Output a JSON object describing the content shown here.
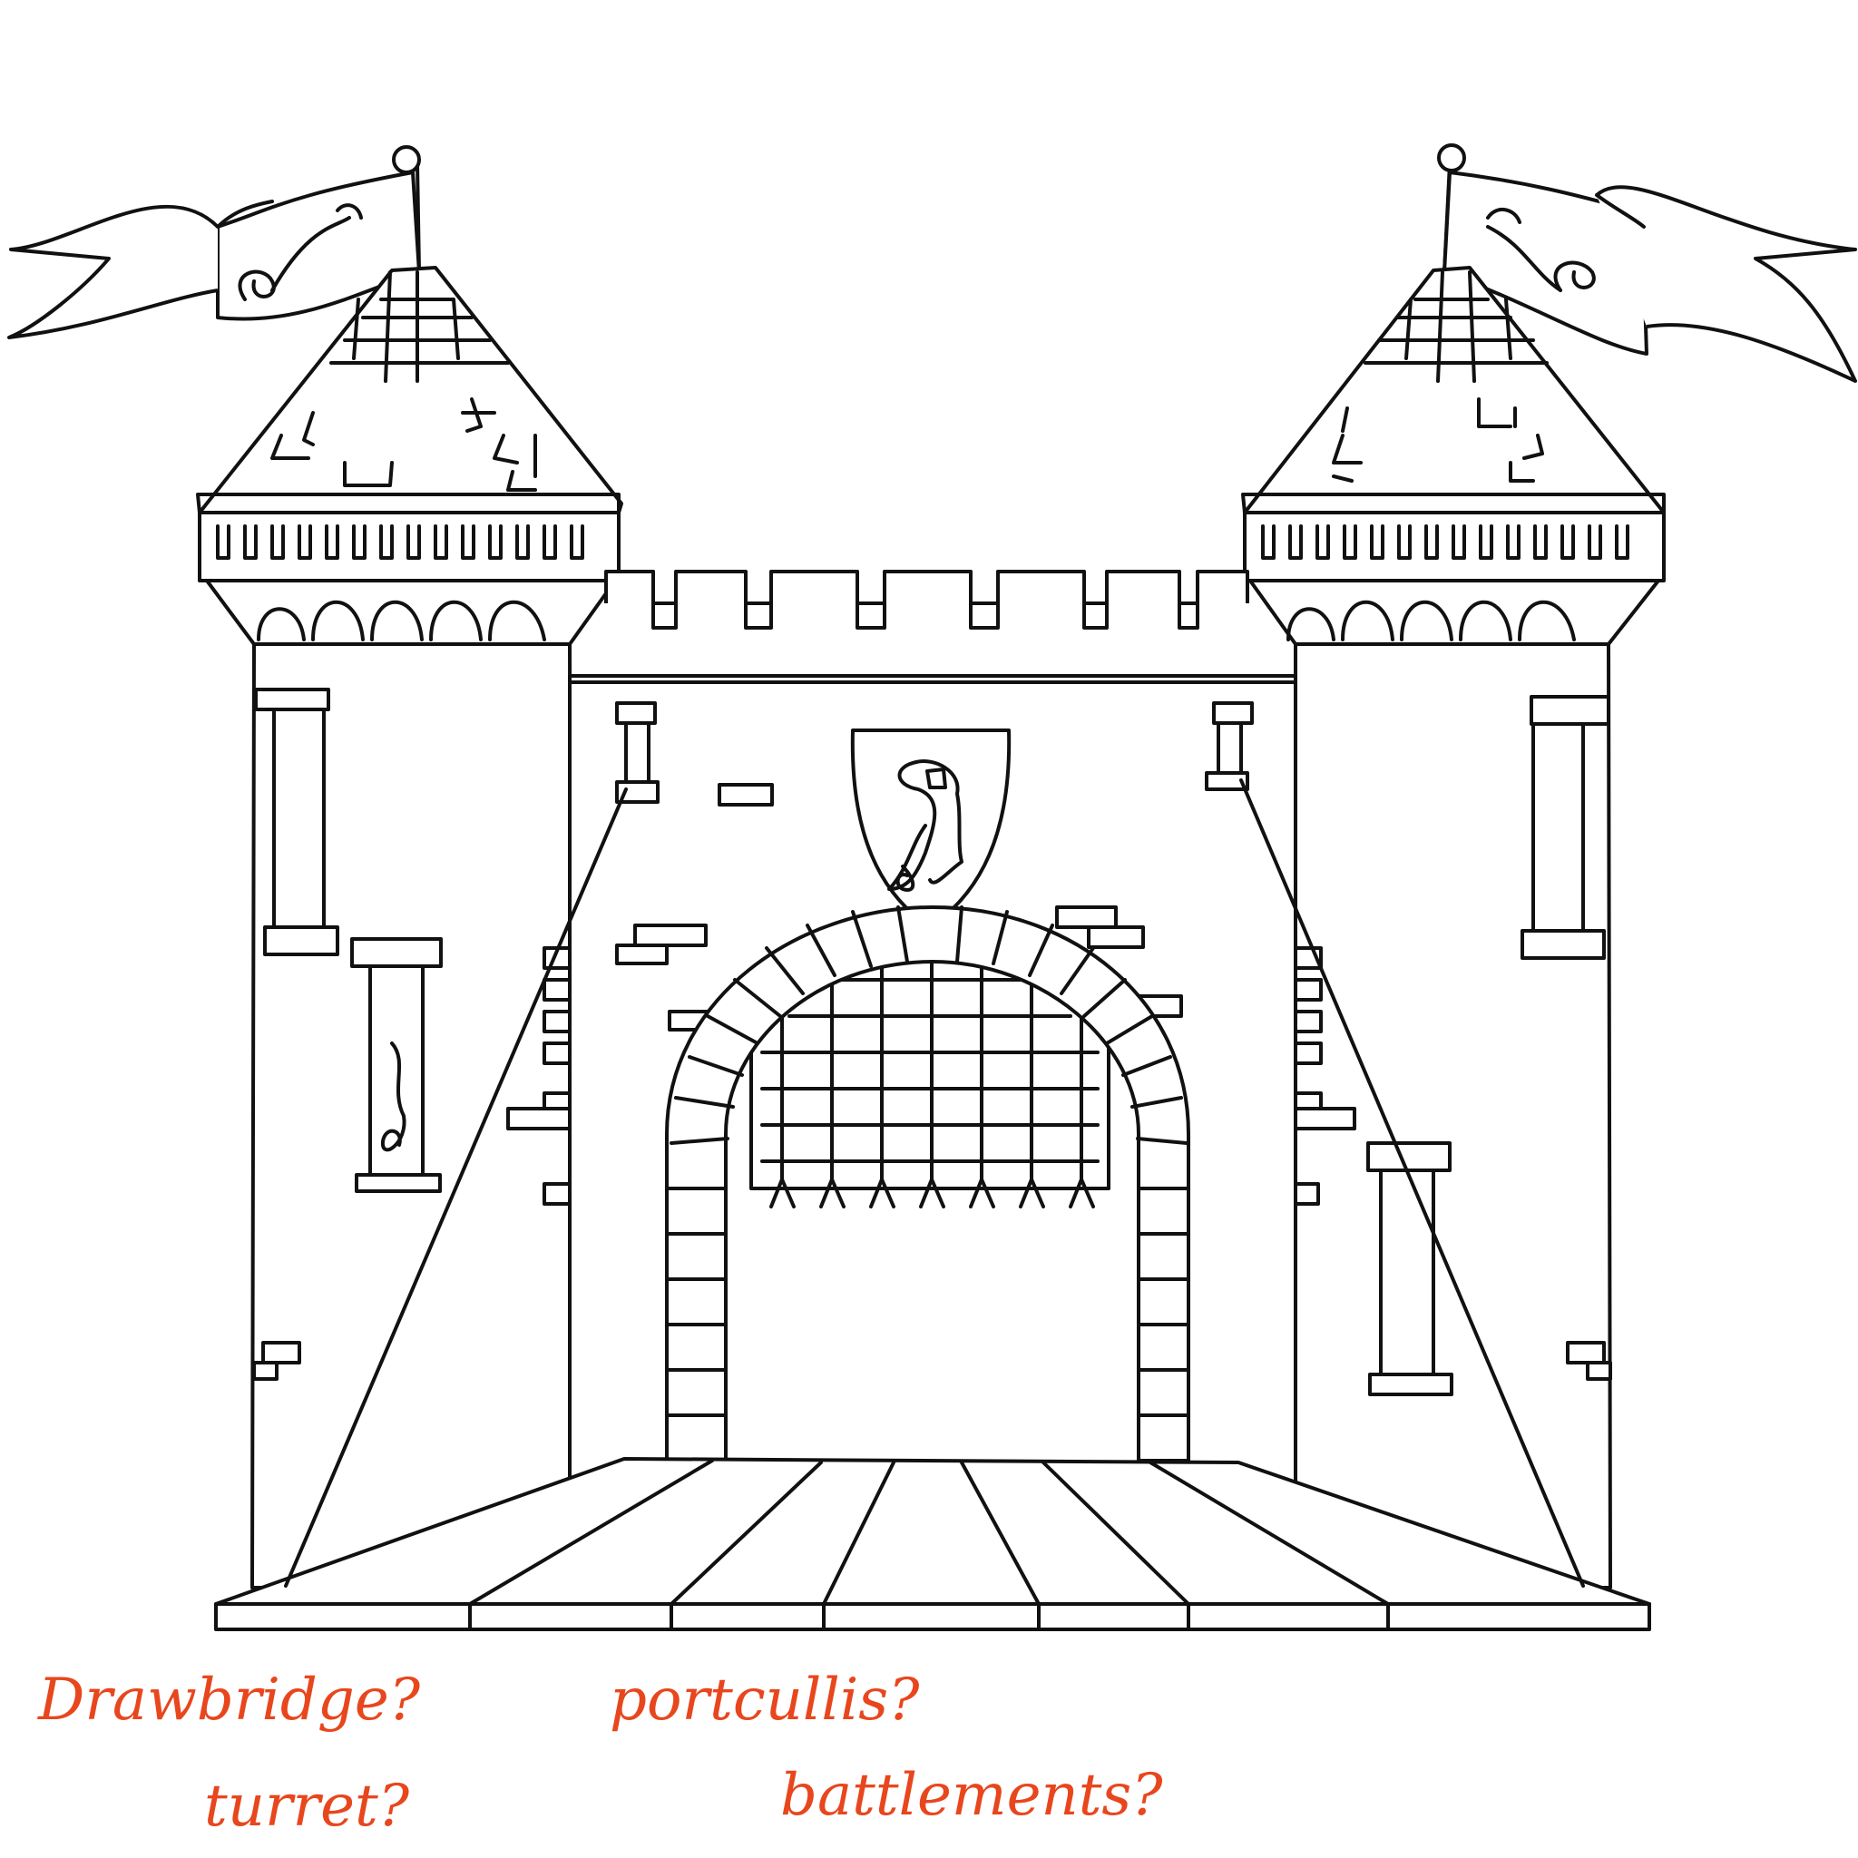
{
  "labels": {
    "drawbridge": "Drawbridge?",
    "portcullis": "portcullis?",
    "turret": "turret?",
    "battlements": "battlements?"
  },
  "colors": {
    "line": "#111111",
    "label": "#e8461d",
    "background": "#ffffff"
  },
  "emblem": "seahorse"
}
